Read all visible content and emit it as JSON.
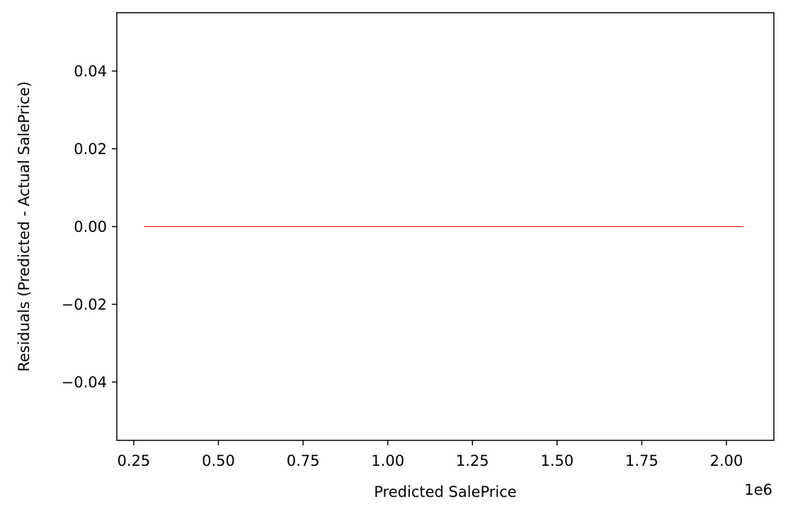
{
  "chart_data": {
    "type": "line",
    "title": "",
    "xlabel": "Predicted SalePrice",
    "ylabel": "Residuals (Predicted - Actual SalePrice)",
    "x_offset_label": "1e6",
    "xlim": [
      0.2,
      2.14
    ],
    "ylim": [
      -0.055,
      0.055
    ],
    "x_ticks": [
      0.25,
      0.5,
      0.75,
      1.0,
      1.25,
      1.5,
      1.75,
      2.0
    ],
    "x_tick_labels": [
      "0.25",
      "0.50",
      "0.75",
      "1.00",
      "1.25",
      "1.50",
      "1.75",
      "2.00"
    ],
    "y_ticks": [
      -0.04,
      -0.02,
      0.0,
      0.02,
      0.04
    ],
    "y_tick_labels": [
      "−0.04",
      "−0.02",
      "0.00",
      "0.02",
      "0.04"
    ],
    "grid": false,
    "series": [
      {
        "color": "#ff0000",
        "x": [
          0.28,
          2.05
        ],
        "y": [
          0.0,
          0.0
        ]
      }
    ]
  }
}
